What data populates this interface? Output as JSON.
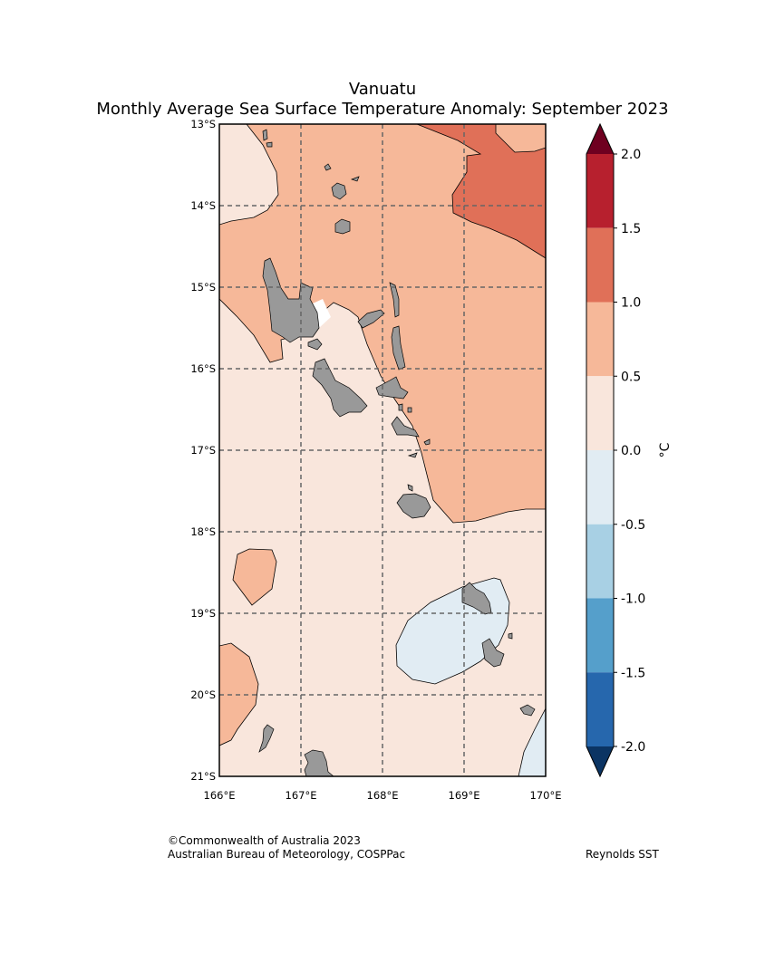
{
  "title": {
    "line1": "Vanuatu",
    "line2": "Monthly Average Sea Surface Temperature Anomaly: September 2023"
  },
  "map": {
    "lat_labels": [
      "13°S",
      "14°S",
      "15°S",
      "16°S",
      "17°S",
      "18°S",
      "19°S",
      "20°S",
      "21°S"
    ],
    "lon_labels": [
      "166°E",
      "167°E",
      "168°E",
      "169°E",
      "170°E"
    ],
    "extent": {
      "lon": [
        166,
        170
      ],
      "lat": [
        -21,
        -13
      ]
    },
    "land_color": "#999999"
  },
  "colorbar": {
    "label": "°C",
    "ticks": [
      "2.0",
      "1.5",
      "1.0",
      "0.5",
      "0.0",
      "-0.5",
      "-1.0",
      "-1.5",
      "-2.0"
    ],
    "colors": [
      "#b7202e",
      "#e07058",
      "#f6b899",
      "#f9e6dc",
      "#e1ecf3",
      "#a8d0e4",
      "#559fcb",
      "#2667ad"
    ],
    "over_color": "#6f0020",
    "under_color": "#0b3463"
  },
  "footer": {
    "copyright": "©Commonwealth of Australia 2023",
    "agency": "Australian Bureau of Meteorology, COSPPac",
    "source": "Reynolds SST"
  }
}
